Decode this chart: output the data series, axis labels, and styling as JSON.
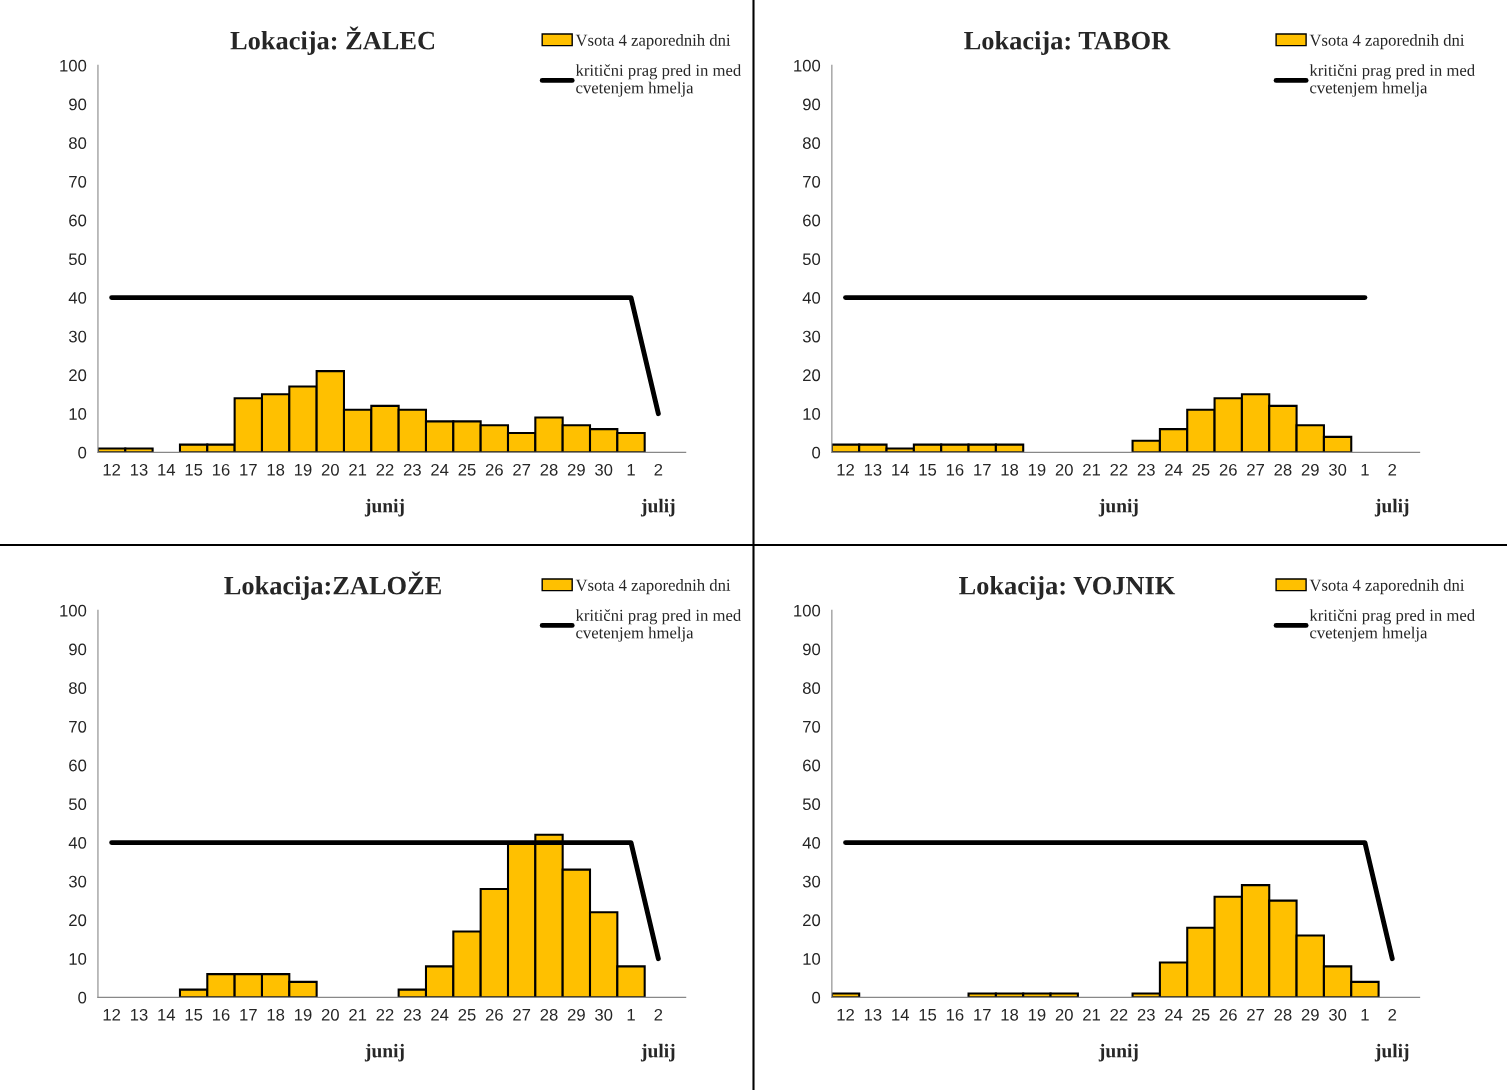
{
  "chart_data": [
    {
      "type": "bar",
      "title": "Lokacija: ŽALEC",
      "categories": [
        "12",
        "13",
        "14",
        "15",
        "16",
        "17",
        "18",
        "19",
        "20",
        "21",
        "22",
        "23",
        "24",
        "25",
        "26",
        "27",
        "28",
        "29",
        "30",
        "1",
        "2"
      ],
      "ylim": [
        0,
        100
      ],
      "yticks": [
        0,
        10,
        20,
        30,
        40,
        50,
        60,
        70,
        80,
        90,
        100
      ],
      "legend": "top right",
      "annotations": [
        "junij",
        "julij"
      ],
      "series": [
        {
          "name": "Vsota 4 zaporednih dni",
          "color": "#ffc000",
          "values": [
            1,
            1,
            null,
            2,
            2,
            14,
            15,
            17,
            21,
            11,
            12,
            11,
            8,
            8,
            7,
            5,
            9,
            7,
            6,
            5,
            null
          ]
        },
        {
          "name": "kritični prag pred in med\ncvetenjem hmelja",
          "type": "line",
          "color": "#000000",
          "values": [
            40,
            40,
            40,
            40,
            40,
            40,
            40,
            40,
            40,
            40,
            40,
            40,
            40,
            40,
            40,
            40,
            40,
            40,
            40,
            40,
            10
          ]
        }
      ]
    },
    {
      "type": "bar",
      "title": "Lokacija: TABOR",
      "categories": [
        "12",
        "13",
        "14",
        "15",
        "16",
        "17",
        "18",
        "19",
        "20",
        "21",
        "22",
        "23",
        "24",
        "25",
        "26",
        "27",
        "28",
        "29",
        "30",
        "1",
        "2"
      ],
      "ylim": [
        0,
        100
      ],
      "yticks": [
        0,
        10,
        20,
        30,
        40,
        50,
        60,
        70,
        80,
        90,
        100
      ],
      "legend": "top right",
      "annotations": [
        "junij",
        "julij"
      ],
      "series": [
        {
          "name": "Vsota 4 zaporednih dni",
          "color": "#ffc000",
          "values": [
            2,
            2,
            1,
            2,
            2,
            2,
            2,
            null,
            null,
            null,
            null,
            3,
            6,
            11,
            14,
            15,
            12,
            7,
            4,
            null,
            null
          ]
        },
        {
          "name": "kritični prag pred in med\ncvetenjem hmelja",
          "type": "line",
          "color": "#000000",
          "values": [
            40,
            40,
            40,
            40,
            40,
            40,
            40,
            40,
            40,
            40,
            40,
            40,
            40,
            40,
            40,
            40,
            40,
            40,
            40,
            40,
            null
          ]
        }
      ]
    },
    {
      "type": "bar",
      "title": "Lokacija:ZALOŽE",
      "categories": [
        "12",
        "13",
        "14",
        "15",
        "16",
        "17",
        "18",
        "19",
        "20",
        "21",
        "22",
        "23",
        "24",
        "25",
        "26",
        "27",
        "28",
        "29",
        "30",
        "1",
        "2"
      ],
      "ylim": [
        0,
        100
      ],
      "yticks": [
        0,
        10,
        20,
        30,
        40,
        50,
        60,
        70,
        80,
        90,
        100
      ],
      "legend": "top right",
      "annotations": [
        "junij",
        "julij"
      ],
      "series": [
        {
          "name": "Vsota 4 zaporednih dni",
          "color": "#ffc000",
          "values": [
            null,
            null,
            null,
            2,
            6,
            6,
            6,
            4,
            null,
            null,
            null,
            2,
            8,
            17,
            28,
            40,
            42,
            33,
            22,
            8,
            null
          ]
        },
        {
          "name": "kritični prag pred in med\ncvetenjem hmelja",
          "type": "line",
          "color": "#000000",
          "values": [
            40,
            40,
            40,
            40,
            40,
            40,
            40,
            40,
            40,
            40,
            40,
            40,
            40,
            40,
            40,
            40,
            40,
            40,
            40,
            40,
            10
          ]
        }
      ]
    },
    {
      "type": "bar",
      "title": "Lokacija: VOJNIK",
      "categories": [
        "12",
        "13",
        "14",
        "15",
        "16",
        "17",
        "18",
        "19",
        "20",
        "21",
        "22",
        "23",
        "24",
        "25",
        "26",
        "27",
        "28",
        "29",
        "30",
        "1",
        "2"
      ],
      "ylim": [
        0,
        100
      ],
      "yticks": [
        0,
        10,
        20,
        30,
        40,
        50,
        60,
        70,
        80,
        90,
        100
      ],
      "legend": "top right",
      "annotations": [
        "junij",
        "julij"
      ],
      "series": [
        {
          "name": "Vsota 4 zaporednih dni",
          "color": "#ffc000",
          "values": [
            1,
            null,
            null,
            null,
            null,
            1,
            1,
            1,
            1,
            null,
            null,
            1,
            9,
            18,
            26,
            29,
            25,
            16,
            8,
            4,
            null
          ]
        },
        {
          "name": "kritični prag pred in med\ncvetenjem hmelja",
          "type": "line",
          "color": "#000000",
          "values": [
            40,
            40,
            40,
            40,
            40,
            40,
            40,
            40,
            40,
            40,
            40,
            40,
            40,
            40,
            40,
            40,
            40,
            40,
            40,
            40,
            10
          ]
        }
      ]
    }
  ]
}
